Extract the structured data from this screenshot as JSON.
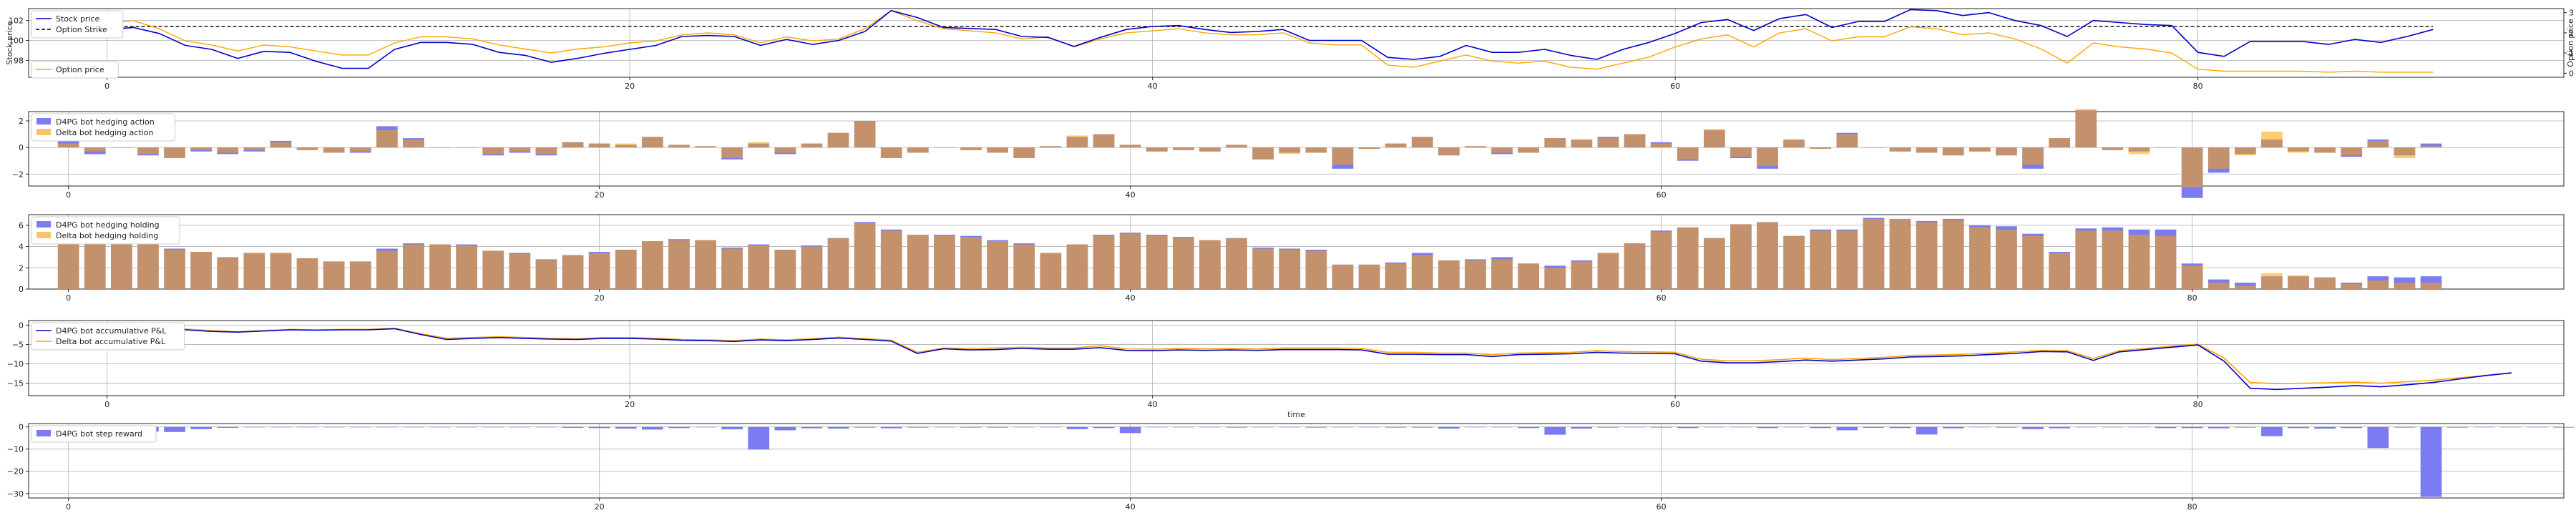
{
  "colors": {
    "d4pg": "#0000cc",
    "delta": "#ffa500",
    "strike": "#000000",
    "d4pg_bar": "#7b7bf2",
    "delta_bar": "#f5c470",
    "overlap_bar": "#c28f7d"
  },
  "chart_data": [
    {
      "type": "line",
      "id": "price",
      "xlim": [
        -3,
        94
      ],
      "xticks": [
        0,
        20,
        40,
        60,
        80
      ],
      "ylabel": "Stock price",
      "ylabel_right": "Option price",
      "ylim": [
        96.3,
        103.2
      ],
      "yticks": [
        98,
        100,
        102
      ],
      "ytick_labels": [
        "98",
        "100",
        "102"
      ],
      "ylim_right": [
        -0.2,
        3.2
      ],
      "yticks_right": [
        0,
        1,
        2,
        3
      ],
      "option_strike": 101.4,
      "legend": [
        "Stock price",
        "Option Strike"
      ],
      "legend_right": [
        "Option price"
      ],
      "stock_price": [
        101.1,
        101.3,
        100.7,
        99.5,
        99.1,
        98.2,
        98.9,
        98.8,
        97.9,
        97.2,
        97.2,
        99.1,
        99.8,
        99.8,
        99.6,
        98.8,
        98.5,
        97.8,
        98.2,
        98.7,
        99.1,
        99.5,
        100.4,
        100.5,
        100.4,
        99.5,
        100.1,
        99.6,
        100.0,
        100.9,
        103.0,
        102.3,
        101.3,
        101.2,
        101.1,
        100.4,
        100.3,
        99.4,
        100.3,
        101.1,
        101.4,
        101.5,
        101.1,
        100.8,
        100.9,
        101.1,
        100.0,
        100.0,
        100.0,
        98.3,
        98.1,
        98.4,
        99.5,
        98.8,
        98.8,
        99.1,
        98.5,
        98.1,
        99.1,
        99.8,
        100.7,
        101.8,
        102.1,
        101.0,
        102.2,
        102.6,
        101.3,
        101.9,
        101.9,
        103.1,
        103.0,
        102.5,
        102.8,
        102.0,
        101.5,
        100.4,
        102.0,
        101.8,
        101.6,
        101.5,
        98.8,
        98.4,
        99.9,
        99.9,
        99.9,
        99.6,
        100.1,
        99.8,
        100.4,
        101.1
      ],
      "option_price": [
        2.5,
        2.6,
        2.2,
        1.6,
        1.4,
        1.1,
        1.4,
        1.3,
        1.1,
        0.9,
        0.9,
        1.5,
        1.8,
        1.8,
        1.7,
        1.4,
        1.2,
        1.0,
        1.2,
        1.3,
        1.5,
        1.6,
        1.9,
        2.0,
        1.9,
        1.5,
        1.8,
        1.6,
        1.7,
        2.2,
        3.1,
        2.6,
        2.2,
        2.1,
        2.0,
        1.7,
        1.8,
        1.3,
        1.7,
        2.0,
        2.1,
        2.2,
        2.0,
        1.9,
        1.9,
        2.0,
        1.5,
        1.4,
        1.4,
        0.4,
        0.3,
        0.6,
        0.9,
        0.6,
        0.5,
        0.6,
        0.3,
        0.2,
        0.5,
        0.8,
        1.3,
        1.7,
        1.9,
        1.3,
        2.0,
        2.2,
        1.6,
        1.8,
        1.8,
        2.3,
        2.2,
        1.9,
        2.0,
        1.7,
        1.2,
        0.5,
        1.5,
        1.3,
        1.2,
        1.0,
        0.2,
        0.1,
        0.1,
        0.1,
        0.1,
        0.05,
        0.1,
        0.05,
        0.05,
        0.05
      ]
    },
    {
      "type": "bar",
      "id": "action",
      "xlim": [
        -1.5,
        94
      ],
      "xticks": [
        0,
        20,
        40,
        60,
        80
      ],
      "ylim": [
        -2.9,
        2.7
      ],
      "yticks": [
        -2,
        0,
        2
      ],
      "legend": [
        "D4PG bot hedging action",
        "Delta bot hedging action"
      ],
      "d4pg": [
        0.5,
        -0.5,
        0,
        -0.6,
        -0.8,
        -0.3,
        -0.5,
        -0.3,
        0.5,
        -0.2,
        -0.4,
        -0.4,
        1.6,
        0.7,
        0,
        0,
        -0.6,
        -0.4,
        -0.6,
        0.4,
        0.3,
        0.2,
        0.8,
        0.2,
        0.1,
        -0.9,
        0.3,
        -0.5,
        0.3,
        1.1,
        2.0,
        -0.8,
        -0.4,
        0,
        -0.2,
        -0.4,
        -0.8,
        0.1,
        0.8,
        1.0,
        0.2,
        -0.3,
        -0.2,
        -0.3,
        0.2,
        -0.9,
        -0.4,
        -0.4,
        -1.6,
        -0.1,
        0.3,
        0.8,
        -0.6,
        0.1,
        -0.5,
        -0.4,
        0.7,
        0.6,
        0.8,
        1.0,
        0.4,
        -1.0,
        1.3,
        -0.8,
        -1.6,
        0.6,
        -0.1,
        1.1,
        0,
        -0.3,
        -0.4,
        -0.6,
        -0.3,
        -0.6,
        -1.6,
        0.7,
        2.8,
        -0.2,
        -0.3,
        0,
        -3.8,
        -1.9,
        -0.5,
        0.6,
        -0.3,
        -0.4,
        -0.7,
        0.6,
        -0.6,
        0.3
      ],
      "delta": [
        0.3,
        -0.3,
        0,
        -0.5,
        -0.8,
        -0.2,
        -0.4,
        -0.2,
        0.4,
        -0.2,
        -0.4,
        -0.3,
        1.3,
        0.6,
        0,
        0,
        -0.5,
        -0.3,
        -0.5,
        0.4,
        0.3,
        0.3,
        0.8,
        0.2,
        0.1,
        -0.8,
        0.4,
        -0.4,
        0.3,
        1.1,
        2.0,
        -0.8,
        -0.4,
        0,
        -0.2,
        -0.4,
        -0.8,
        0.1,
        0.9,
        1.0,
        0.2,
        -0.3,
        -0.2,
        -0.3,
        0.2,
        -0.9,
        -0.5,
        -0.4,
        -1.3,
        -0.1,
        0.3,
        0.8,
        -0.6,
        0.1,
        -0.4,
        -0.4,
        0.7,
        0.6,
        0.7,
        1.0,
        0.3,
        -0.9,
        1.4,
        -0.7,
        -1.4,
        0.6,
        -0.1,
        1.0,
        0,
        -0.3,
        -0.4,
        -0.6,
        -0.3,
        -0.6,
        -1.3,
        0.7,
        2.9,
        -0.2,
        -0.5,
        0,
        -3.0,
        -1.6,
        -0.6,
        1.2,
        -0.4,
        -0.4,
        -0.6,
        0.5,
        -0.8,
        0.1
      ]
    },
    {
      "type": "bar",
      "id": "holding",
      "xlim": [
        -1.5,
        94
      ],
      "xticks": [
        0,
        20,
        40,
        60,
        80
      ],
      "ylim": [
        0,
        7
      ],
      "yticks": [
        0,
        2,
        4,
        6
      ],
      "legend": [
        "D4PG bot hedging holding",
        "Delta bot hedging holding"
      ],
      "d4pg": [
        5.5,
        5.0,
        5.1,
        4.6,
        3.8,
        3.5,
        3.0,
        3.4,
        3.4,
        2.9,
        2.6,
        2.6,
        3.8,
        4.3,
        4.2,
        4.2,
        3.6,
        3.4,
        2.8,
        3.2,
        3.5,
        3.7,
        4.5,
        4.7,
        4.6,
        3.9,
        4.2,
        3.7,
        4.1,
        4.8,
        6.3,
        5.6,
        5.1,
        5.1,
        5.0,
        4.6,
        4.3,
        3.4,
        4.2,
        5.1,
        5.3,
        5.1,
        4.9,
        4.6,
        4.8,
        3.9,
        3.8,
        3.7,
        2.3,
        2.3,
        2.5,
        3.4,
        2.7,
        2.8,
        3.0,
        2.4,
        2.2,
        2.7,
        3.4,
        4.3,
        5.5,
        5.8,
        4.8,
        6.1,
        6.3,
        5.0,
        5.6,
        5.6,
        6.7,
        6.6,
        6.4,
        6.6,
        6.0,
        5.9,
        5.2,
        3.5,
        5.7,
        5.8,
        5.6,
        5.6,
        2.4,
        0.9,
        0.6,
        1.2,
        1.2,
        1.1,
        0.6,
        1.2,
        1.1,
        1.2
      ],
      "delta": [
        5.3,
        5.0,
        5.0,
        4.5,
        3.7,
        3.5,
        3.0,
        3.4,
        3.4,
        2.9,
        2.6,
        2.6,
        3.6,
        4.2,
        4.2,
        4.1,
        3.6,
        3.3,
        2.8,
        3.2,
        3.4,
        3.7,
        4.5,
        4.6,
        4.6,
        3.8,
        4.1,
        3.7,
        4.0,
        4.8,
        6.2,
        5.5,
        5.1,
        5.0,
        4.9,
        4.5,
        4.2,
        3.4,
        4.2,
        5.0,
        5.2,
        5.0,
        4.8,
        4.6,
        4.8,
        3.8,
        3.7,
        3.6,
        2.3,
        2.3,
        2.4,
        3.2,
        2.7,
        2.7,
        2.8,
        2.4,
        2.0,
        2.6,
        3.4,
        4.3,
        5.4,
        5.8,
        4.8,
        6.1,
        6.3,
        5.0,
        5.5,
        5.5,
        6.6,
        6.6,
        6.3,
        6.5,
        5.8,
        5.6,
        5.0,
        3.4,
        5.5,
        5.5,
        5.1,
        5.0,
        2.2,
        0.6,
        0.3,
        1.5,
        1.3,
        1.1,
        0.5,
        0.8,
        0.6,
        0.6
      ]
    },
    {
      "type": "line",
      "id": "pnl",
      "xlim": [
        -3,
        94
      ],
      "xticks": [
        0,
        20,
        40,
        60,
        80
      ],
      "xlabel": "time",
      "ylim": [
        -18.2,
        1.2
      ],
      "yticks": [
        -15,
        -10,
        -5,
        0
      ],
      "legend": [
        "D4PG bot accumulative P&L",
        "Delta bot accumulative P&L"
      ],
      "d4pg": [
        0,
        0,
        -0.3,
        -1.2,
        -1.6,
        -1.8,
        -1.5,
        -1.2,
        -1.3,
        -1.2,
        -1.2,
        -0.9,
        -2.4,
        -3.7,
        -3.4,
        -3.2,
        -3.4,
        -3.6,
        -3.7,
        -3.4,
        -3.4,
        -3.6,
        -3.9,
        -4.0,
        -4.2,
        -3.8,
        -4.0,
        -3.7,
        -3.3,
        -3.7,
        -4.1,
        -7.3,
        -6.1,
        -6.4,
        -6.3,
        -6.0,
        -6.2,
        -6.2,
        -5.8,
        -6.5,
        -6.6,
        -6.4,
        -6.5,
        -6.4,
        -6.5,
        -6.3,
        -6.3,
        -6.3,
        -6.4,
        -7.5,
        -7.5,
        -7.6,
        -7.6,
        -8.1,
        -7.6,
        -7.5,
        -7.4,
        -7.0,
        -7.2,
        -7.3,
        -7.4,
        -9.3,
        -9.7,
        -9.7,
        -9.4,
        -9.0,
        -9.3,
        -9.0,
        -8.7,
        -8.2,
        -8.1,
        -7.9,
        -7.6,
        -7.3,
        -6.8,
        -6.9,
        -9.1,
        -6.9,
        -6.3,
        -5.7,
        -5.1,
        -9.3,
        -16.3,
        -16.6,
        -16.3,
        -16.0,
        -15.6,
        -15.9,
        -15.4,
        -14.8,
        -13.9,
        -13.0,
        -12.3
      ],
      "delta": [
        0.2,
        0.2,
        -0.2,
        -1.0,
        -1.4,
        -1.7,
        -1.4,
        -1.1,
        -1.2,
        -1.1,
        -1.1,
        -0.8,
        -2.2,
        -3.4,
        -3.2,
        -3.0,
        -3.2,
        -3.4,
        -3.5,
        -3.2,
        -3.2,
        -3.4,
        -3.7,
        -3.8,
        -4.0,
        -3.6,
        -3.8,
        -3.5,
        -3.1,
        -3.5,
        -3.9,
        -7.0,
        -5.9,
        -6.0,
        -5.9,
        -5.7,
        -5.9,
        -5.9,
        -5.3,
        -6.1,
        -6.2,
        -6.0,
        -6.1,
        -6.0,
        -6.1,
        -5.9,
        -5.9,
        -5.9,
        -6.0,
        -7.0,
        -7.0,
        -7.2,
        -7.2,
        -7.6,
        -7.2,
        -7.1,
        -7.0,
        -6.6,
        -6.8,
        -6.9,
        -7.0,
        -8.8,
        -9.2,
        -9.2,
        -8.9,
        -8.5,
        -8.9,
        -8.6,
        -8.3,
        -7.8,
        -7.7,
        -7.5,
        -7.2,
        -6.9,
        -6.5,
        -6.6,
        -8.6,
        -6.6,
        -6.0,
        -5.4,
        -4.9,
        -8.5,
        -14.8,
        -15.1,
        -15.0,
        -14.9,
        -14.7,
        -15.0,
        -14.6,
        -14.2,
        -13.6,
        -13.0,
        -12.4
      ]
    },
    {
      "type": "bar",
      "id": "reward",
      "xlim": [
        -1.5,
        94
      ],
      "xticks": [
        0,
        20,
        40,
        60,
        80
      ],
      "ylim": [
        -32,
        1.5
      ],
      "yticks": [
        -30,
        -20,
        -10,
        0
      ],
      "legend": [
        "D4PG bot step reward"
      ],
      "values": [
        -0.3,
        -0.4,
        -0.3,
        -2.1,
        -2.3,
        -1.0,
        -0.4,
        0,
        0,
        0,
        -0.2,
        -0.2,
        0,
        0,
        0,
        0,
        0,
        0,
        0,
        -0.4,
        -0.5,
        -0.8,
        -1.2,
        -0.5,
        -0.2,
        -1.1,
        -10.2,
        -1.5,
        -0.6,
        -0.8,
        -0.3,
        -0.6,
        -0.3,
        -0.2,
        -0.3,
        -0.3,
        -0.2,
        0,
        -1.0,
        -0.5,
        -2.8,
        0,
        0,
        -0.2,
        -0.3,
        0,
        -0.2,
        -0.3,
        0,
        0,
        -0.3,
        -0.3,
        -0.8,
        0,
        0,
        -0.5,
        -3.5,
        -0.8,
        -0.3,
        -0.2,
        -0.3,
        -0.5,
        -0.2,
        0,
        -0.5,
        0,
        -0.5,
        -1.5,
        -0.4,
        -0.5,
        -3.4,
        -0.6,
        -0.2,
        -0.3,
        -1.0,
        -0.6,
        -0.2,
        0,
        0,
        -0.5,
        -0.5,
        -0.6,
        -0.3,
        -4.2,
        -0.5,
        -0.8,
        -0.5,
        -9.5,
        -0.3,
        -31.5,
        -0.3,
        -0.2,
        -0.2,
        0,
        -0.3,
        -0.2,
        -0.5,
        -0.3,
        0,
        -0.5,
        -0.3,
        -0.3,
        -0.5
      ]
    }
  ]
}
